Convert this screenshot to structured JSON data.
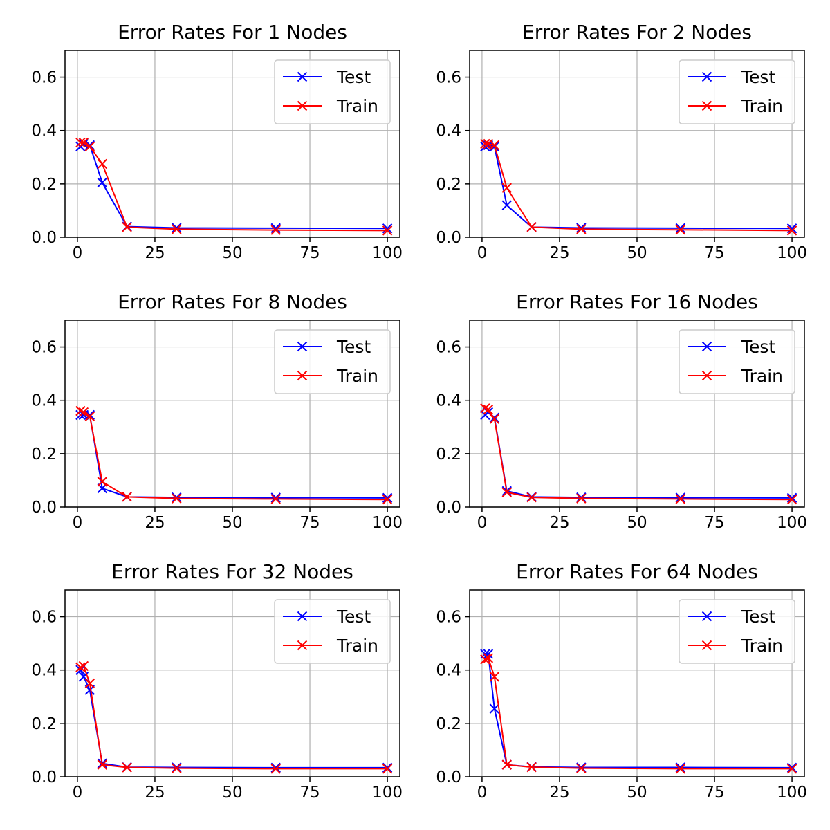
{
  "chart_data": [
    {
      "type": "line",
      "title": "Error Rates For 1 Nodes",
      "xlabel": "",
      "ylabel": "",
      "xlim": [
        -4,
        104
      ],
      "ylim": [
        0,
        0.7
      ],
      "xticks": [
        0,
        25,
        50,
        75,
        100
      ],
      "yticks": [
        0.0,
        0.2,
        0.4,
        0.6
      ],
      "grid": true,
      "legend": "top-right",
      "x": [
        1,
        2,
        4,
        8,
        16,
        32,
        64,
        100
      ],
      "series": [
        {
          "name": "Test",
          "color": "#0000ff",
          "values": [
            0.34,
            0.35,
            0.345,
            0.205,
            0.04,
            0.035,
            0.034,
            0.033
          ]
        },
        {
          "name": "Train",
          "color": "#ff0000",
          "values": [
            0.355,
            0.355,
            0.34,
            0.275,
            0.038,
            0.03,
            0.027,
            0.025
          ]
        }
      ]
    },
    {
      "type": "line",
      "title": "Error Rates For 2 Nodes",
      "xlabel": "",
      "ylabel": "",
      "xlim": [
        -4,
        104
      ],
      "ylim": [
        0,
        0.7
      ],
      "xticks": [
        0,
        25,
        50,
        75,
        100
      ],
      "yticks": [
        0.0,
        0.2,
        0.4,
        0.6
      ],
      "grid": true,
      "legend": "top-right",
      "x": [
        1,
        2,
        4,
        8,
        16,
        32,
        64,
        100
      ],
      "series": [
        {
          "name": "Test",
          "color": "#0000ff",
          "values": [
            0.34,
            0.345,
            0.34,
            0.12,
            0.038,
            0.035,
            0.034,
            0.033
          ]
        },
        {
          "name": "Train",
          "color": "#ff0000",
          "values": [
            0.35,
            0.35,
            0.345,
            0.185,
            0.038,
            0.03,
            0.028,
            0.025
          ]
        }
      ]
    },
    {
      "type": "line",
      "title": "Error Rates For 8 Nodes",
      "xlabel": "",
      "ylabel": "",
      "xlim": [
        -4,
        104
      ],
      "ylim": [
        0,
        0.7
      ],
      "xticks": [
        0,
        25,
        50,
        75,
        100
      ],
      "yticks": [
        0.0,
        0.2,
        0.4,
        0.6
      ],
      "grid": true,
      "legend": "top-right",
      "x": [
        1,
        2,
        4,
        8,
        16,
        32,
        64,
        100
      ],
      "series": [
        {
          "name": "Test",
          "color": "#0000ff",
          "values": [
            0.345,
            0.345,
            0.345,
            0.07,
            0.038,
            0.036,
            0.035,
            0.034
          ]
        },
        {
          "name": "Train",
          "color": "#ff0000",
          "values": [
            0.36,
            0.355,
            0.34,
            0.095,
            0.038,
            0.032,
            0.03,
            0.028
          ]
        }
      ]
    },
    {
      "type": "line",
      "title": "Error Rates For 16 Nodes",
      "xlabel": "",
      "ylabel": "",
      "xlim": [
        -4,
        104
      ],
      "ylim": [
        0,
        0.7
      ],
      "xticks": [
        0,
        25,
        50,
        75,
        100
      ],
      "yticks": [
        0.0,
        0.2,
        0.4,
        0.6
      ],
      "grid": true,
      "legend": "top-right",
      "x": [
        1,
        2,
        4,
        8,
        16,
        32,
        64,
        100
      ],
      "series": [
        {
          "name": "Test",
          "color": "#0000ff",
          "values": [
            0.345,
            0.355,
            0.335,
            0.06,
            0.038,
            0.036,
            0.035,
            0.034
          ]
        },
        {
          "name": "Train",
          "color": "#ff0000",
          "values": [
            0.37,
            0.365,
            0.33,
            0.055,
            0.036,
            0.032,
            0.03,
            0.028
          ]
        }
      ]
    },
    {
      "type": "line",
      "title": "Error Rates For 32 Nodes",
      "xlabel": "",
      "ylabel": "",
      "xlim": [
        -4,
        104
      ],
      "ylim": [
        0,
        0.7
      ],
      "xticks": [
        0,
        25,
        50,
        75,
        100
      ],
      "yticks": [
        0.0,
        0.2,
        0.4,
        0.6
      ],
      "grid": true,
      "legend": "top-right",
      "x": [
        1,
        2,
        4,
        8,
        16,
        32,
        64,
        100
      ],
      "series": [
        {
          "name": "Test",
          "color": "#0000ff",
          "values": [
            0.4,
            0.375,
            0.325,
            0.05,
            0.036,
            0.035,
            0.034,
            0.034
          ]
        },
        {
          "name": "Train",
          "color": "#ff0000",
          "values": [
            0.41,
            0.415,
            0.35,
            0.045,
            0.035,
            0.032,
            0.03,
            0.03
          ]
        }
      ]
    },
    {
      "type": "line",
      "title": "Error Rates For 64 Nodes",
      "xlabel": "",
      "ylabel": "",
      "xlim": [
        -4,
        104
      ],
      "ylim": [
        0,
        0.7
      ],
      "xticks": [
        0,
        25,
        50,
        75,
        100
      ],
      "yticks": [
        0.0,
        0.2,
        0.4,
        0.6
      ],
      "grid": true,
      "legend": "top-right",
      "x": [
        1,
        2,
        4,
        8,
        16,
        32,
        64,
        100
      ],
      "series": [
        {
          "name": "Test",
          "color": "#0000ff",
          "values": [
            0.46,
            0.46,
            0.255,
            0.045,
            0.037,
            0.035,
            0.035,
            0.034
          ]
        },
        {
          "name": "Train",
          "color": "#ff0000",
          "values": [
            0.44,
            0.445,
            0.375,
            0.045,
            0.036,
            0.032,
            0.03,
            0.03
          ]
        }
      ]
    }
  ]
}
